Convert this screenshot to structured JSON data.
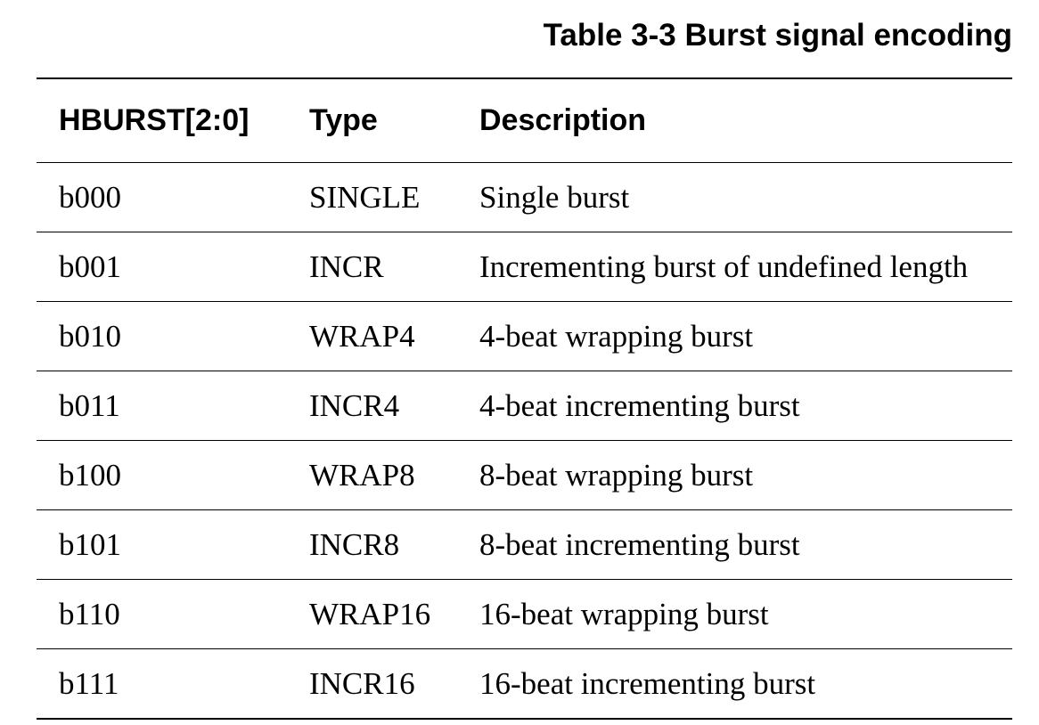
{
  "caption": "Table 3-3 Burst signal encoding",
  "table": {
    "headers": [
      "HBURST[2:0]",
      "Type",
      "Description"
    ],
    "rows": [
      [
        "b000",
        "SINGLE",
        "Single burst"
      ],
      [
        "b001",
        "INCR",
        "Incrementing burst of undefined length"
      ],
      [
        "b010",
        "WRAP4",
        "4-beat wrapping burst"
      ],
      [
        "b011",
        "INCR4",
        "4-beat incrementing burst"
      ],
      [
        "b100",
        "WRAP8",
        "8-beat wrapping burst"
      ],
      [
        "b101",
        "INCR8",
        "8-beat incrementing burst"
      ],
      [
        "b110",
        "WRAP16",
        "16-beat wrapping burst"
      ],
      [
        "b111",
        "INCR16",
        "16-beat incrementing burst"
      ]
    ]
  }
}
